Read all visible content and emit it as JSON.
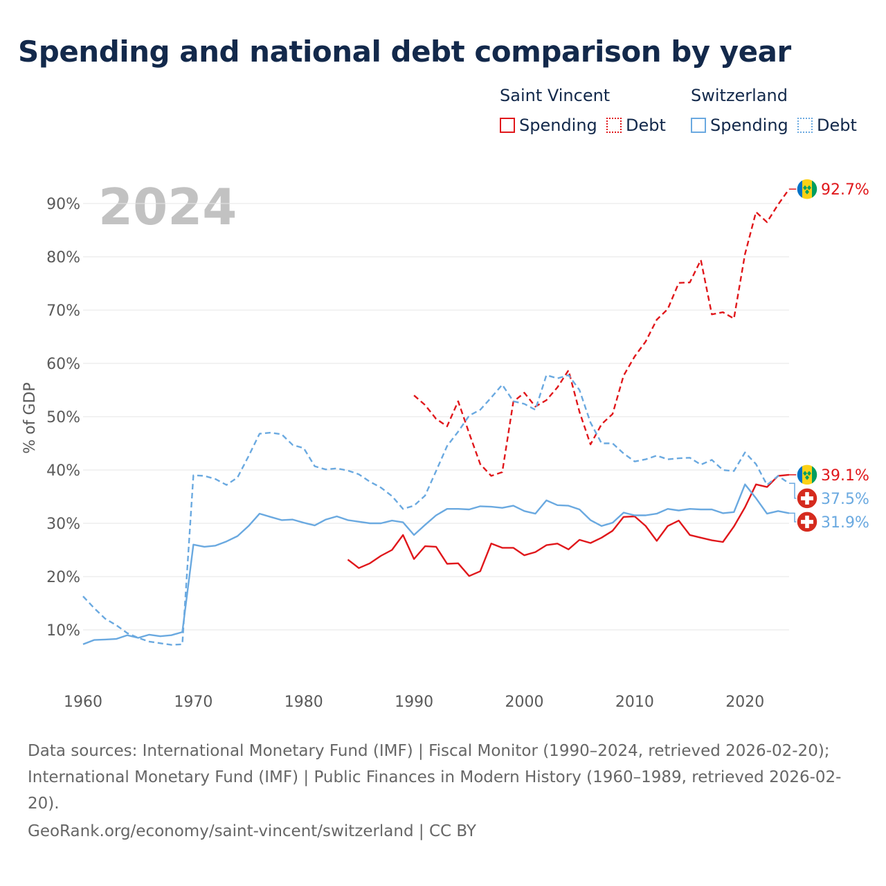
{
  "title": "Spending and national debt comparison by year",
  "legend": {
    "group1": "Saint Vincent",
    "group2": "Switzerland",
    "spending": "Spending",
    "debt": "Debt"
  },
  "colors": {
    "saint_vincent": "#e0171b",
    "switzerland": "#6aa9e0",
    "grid": "#e6e6e6",
    "axis_text": "#5a5a5a"
  },
  "footer": {
    "sources": "Data sources: International Monetary Fund (IMF) | Fiscal Monitor (1990–2024, retrieved 2026-02-20); International Monetary Fund (IMF) | Public Finances in Modern History (1960–1989, retrieved 2026-02-20).",
    "credit": "GeoRank.org/economy/saint-vincent/switzerland | CC BY"
  },
  "chart_data": {
    "type": "line",
    "year_stamp": "2024",
    "ylabel": "% of GDP",
    "xlabel": "",
    "xlim": [
      1960,
      2024
    ],
    "ylim": [
      0,
      100
    ],
    "x_ticks": [
      1960,
      1970,
      1980,
      1990,
      2000,
      2010,
      2020
    ],
    "y_ticks": [
      10,
      20,
      30,
      40,
      50,
      60,
      70,
      80,
      90
    ],
    "y_tick_labels": [
      "10%",
      "20%",
      "30%",
      "40%",
      "50%",
      "60%",
      "70%",
      "80%",
      "90%"
    ],
    "series": [
      {
        "name": "Saint Vincent Debt",
        "country": "Saint Vincent",
        "indicator": "Debt",
        "style": "dashed",
        "color": "#e0171b",
        "end_label": "92.7%",
        "flag": "saint-vincent",
        "start": 1990,
        "values": [
          54.0,
          52.2,
          49.6,
          48.2,
          52.9,
          46.9,
          41.1,
          38.9,
          39.6,
          52.8,
          54.5,
          51.9,
          53.1,
          55.5,
          58.7,
          50.9,
          44.8,
          48.6,
          50.5,
          57.7,
          61.3,
          64.1,
          68.2,
          70.2,
          75.1,
          75.2,
          79.4,
          69.2,
          69.6,
          68.4,
          80.5,
          88.4,
          86.5,
          89.8,
          92.7
        ]
      },
      {
        "name": "Saint Vincent Spending",
        "country": "Saint Vincent",
        "indicator": "Spending",
        "style": "solid",
        "color": "#e0171b",
        "end_label": "39.1%",
        "flag": "saint-vincent",
        "start": 1984,
        "values": [
          23.2,
          21.6,
          22.5,
          23.9,
          25.0,
          27.8,
          23.3,
          25.7,
          25.6,
          22.4,
          22.5,
          20.1,
          21.0,
          26.2,
          25.4,
          25.4,
          24.0,
          24.6,
          25.9,
          26.2,
          25.1,
          26.9,
          26.3,
          27.3,
          28.6,
          31.2,
          31.3,
          29.5,
          26.7,
          29.5,
          30.5,
          27.8,
          27.3,
          26.8,
          26.5,
          29.4,
          33.0,
          37.3,
          36.8,
          38.9,
          39.1
        ]
      },
      {
        "name": "Switzerland Debt",
        "country": "Switzerland",
        "indicator": "Debt",
        "style": "dashed",
        "color": "#6aa9e0",
        "end_label": "37.5%",
        "flag": "switzerland",
        "start": 1960,
        "values": [
          16.3,
          14.1,
          12.1,
          10.9,
          9.4,
          8.5,
          7.8,
          7.5,
          7.2,
          7.3,
          39.0,
          38.9,
          38.3,
          37.2,
          38.6,
          42.6,
          46.8,
          47.0,
          46.7,
          44.7,
          44.1,
          40.7,
          40.1,
          40.3,
          39.9,
          39.2,
          37.8,
          36.7,
          35.1,
          32.7,
          33.3,
          35.2,
          39.8,
          44.5,
          47.2,
          50.2,
          51.3,
          53.6,
          56.0,
          52.9,
          52.4,
          51.3,
          57.8,
          57.2,
          57.8,
          55.0,
          48.9,
          45.0,
          45.0,
          43.1,
          41.6,
          42.0,
          42.7,
          42.0,
          42.2,
          42.3,
          41.0,
          41.9,
          40.0,
          39.8,
          43.3,
          41.1,
          37.2,
          38.9,
          37.5
        ]
      },
      {
        "name": "Switzerland Spending",
        "country": "Switzerland",
        "indicator": "Spending",
        "style": "solid",
        "color": "#6aa9e0",
        "end_label": "31.9%",
        "flag": "switzerland",
        "start": 1960,
        "values": [
          7.3,
          8.1,
          8.2,
          8.3,
          9.0,
          8.5,
          9.1,
          8.8,
          9.0,
          9.6,
          26.0,
          25.6,
          25.8,
          26.6,
          27.6,
          29.5,
          31.8,
          31.2,
          30.6,
          30.7,
          30.1,
          29.6,
          30.7,
          31.3,
          30.6,
          30.3,
          30.0,
          30.0,
          30.5,
          30.2,
          27.8,
          29.7,
          31.5,
          32.7,
          32.7,
          32.6,
          33.2,
          33.1,
          32.9,
          33.3,
          32.3,
          31.8,
          34.3,
          33.4,
          33.3,
          32.6,
          30.6,
          29.5,
          30.1,
          32.0,
          31.5,
          31.5,
          31.8,
          32.7,
          32.4,
          32.7,
          32.6,
          32.6,
          31.9,
          32.1,
          37.3,
          34.7,
          31.8,
          32.3,
          31.9
        ]
      }
    ]
  }
}
